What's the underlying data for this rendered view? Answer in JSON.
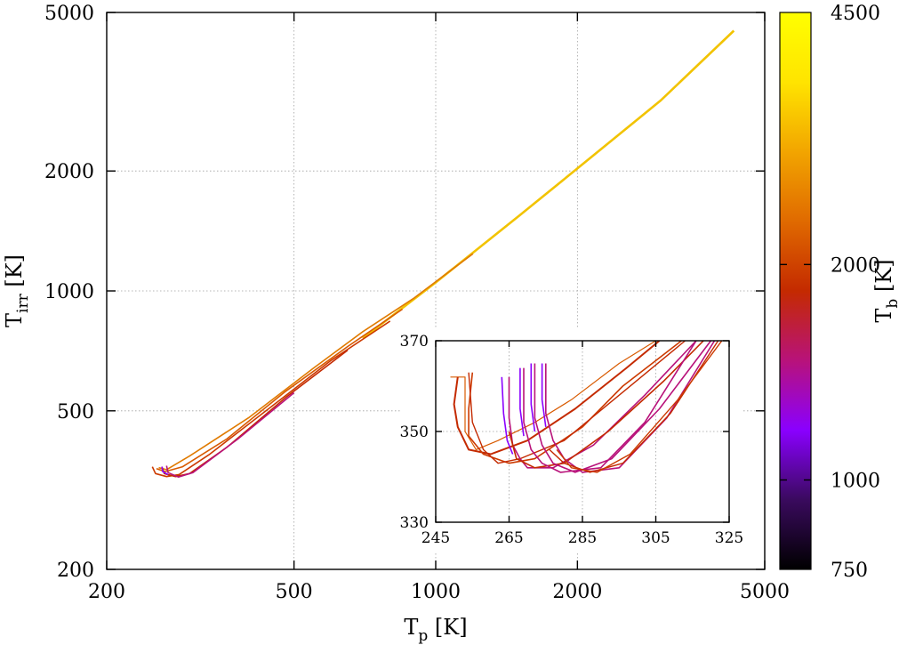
{
  "chart_data": [
    {
      "type": "line",
      "role": "main",
      "xlabel": {
        "main": "T",
        "sub": "p",
        "unit": " [K]"
      },
      "ylabel": {
        "main": "T",
        "sub": "irr",
        "unit": " [K]"
      },
      "xscale": "log",
      "yscale": "log",
      "xlim": [
        200,
        5000
      ],
      "ylim": [
        200,
        5000
      ],
      "x_ticks": [
        200,
        500,
        1000,
        2000,
        5000
      ],
      "x_tick_labels": [
        "200",
        "500",
        "1000",
        "2000",
        "5000"
      ],
      "y_ticks": [
        200,
        500,
        1000,
        2000,
        5000
      ],
      "y_tick_labels": [
        "200",
        "500",
        "1000",
        "2000",
        "5000"
      ],
      "grid": true,
      "colorbar": {
        "label": {
          "main": "T",
          "sub": "b",
          "unit": " [K]"
        },
        "range": [
          750,
          4500
        ],
        "ticks": [
          750,
          1000,
          2000,
          4500
        ],
        "tick_labels": [
          "750",
          "1000",
          "2000",
          "4500"
        ],
        "colormap": [
          "#000000",
          "#3a0a5e",
          "#8a00ff",
          "#b8127a",
          "#c42a00",
          "#e06a00",
          "#f2a500",
          "#ffe400",
          "#ffff00"
        ]
      },
      "series": [
        {
          "color": "#f2c300",
          "points": [
            [
              700,
              760
            ],
            [
              1000,
              1050
            ],
            [
              1500,
              1540
            ],
            [
              2000,
              2030
            ],
            [
              3000,
              3000
            ],
            [
              4300,
              4500
            ]
          ]
        },
        {
          "color": "#e07a00",
          "points": [
            [
              258,
              360
            ],
            [
              268,
              356
            ],
            [
              300,
              385
            ],
            [
              400,
              480
            ],
            [
              550,
              640
            ],
            [
              700,
              790
            ],
            [
              900,
              960
            ],
            [
              1200,
              1240
            ]
          ]
        },
        {
          "color": "#d85a00",
          "points": [
            [
              255,
              358
            ],
            [
              266,
              352
            ],
            [
              290,
              362
            ],
            [
              360,
              425
            ],
            [
              480,
              560
            ],
            [
              650,
              725
            ],
            [
              850,
              900
            ]
          ]
        },
        {
          "color": "#cc3a00",
          "points": [
            [
              250,
              362
            ],
            [
              254,
              348
            ],
            [
              268,
              342
            ],
            [
              285,
              346
            ],
            [
              330,
              388
            ],
            [
              450,
              515
            ],
            [
              600,
              670
            ],
            [
              800,
              840
            ]
          ]
        },
        {
          "color": "#c42a00",
          "points": [
            [
              262,
              362
            ],
            [
              265,
              348
            ],
            [
              280,
              342
            ],
            [
              300,
              348
            ],
            [
              360,
              405
            ],
            [
              480,
              540
            ],
            [
              650,
              710
            ]
          ]
        },
        {
          "color": "#b8127a",
          "points": [
            [
              268,
              364
            ],
            [
              270,
              350
            ],
            [
              284,
              341
            ],
            [
              305,
              350
            ],
            [
              380,
              425
            ],
            [
              500,
              555
            ]
          ]
        },
        {
          "color": "#8a00ff",
          "points": [
            [
              262,
              362
            ],
            [
              263,
              352
            ],
            [
              270,
              346
            ]
          ]
        }
      ]
    },
    {
      "type": "line",
      "role": "inset",
      "xlim": [
        245,
        325
      ],
      "ylim": [
        330,
        370
      ],
      "x_ticks": [
        245,
        265,
        285,
        305,
        325
      ],
      "x_tick_labels": [
        "245",
        "265",
        "285",
        "305",
        "325"
      ],
      "y_ticks": [
        330,
        350,
        370
      ],
      "y_tick_labels": [
        "330",
        "350",
        "370"
      ],
      "grid": true,
      "series": [
        {
          "color": "#d85a00",
          "width": 1.2,
          "points": [
            [
              249,
              362
            ],
            [
              253,
              362
            ],
            [
              253,
              350
            ],
            [
              256,
              346
            ],
            [
              262,
              348
            ],
            [
              272,
              352
            ],
            [
              282,
              357
            ],
            [
              295,
              365
            ],
            [
              305,
              370
            ]
          ]
        },
        {
          "color": "#c42a00",
          "width": 2.0,
          "points": [
            [
              251,
              362
            ],
            [
              250,
              356
            ],
            [
              251,
              351
            ],
            [
              254,
              346
            ],
            [
              260,
              345
            ],
            [
              270,
              348
            ],
            [
              283,
              355
            ],
            [
              297,
              364
            ],
            [
              306,
              370
            ]
          ]
        },
        {
          "color": "#cc3a00",
          "width": 1.6,
          "points": [
            [
              255,
              363
            ],
            [
              254,
              355
            ],
            [
              254,
              349
            ],
            [
              258,
              345
            ],
            [
              265,
              343
            ],
            [
              272,
              344
            ],
            [
              285,
              351
            ],
            [
              296,
              360
            ],
            [
              312,
              370
            ]
          ]
        },
        {
          "color": "#c42a00",
          "width": 1.4,
          "points": [
            [
              254,
              363
            ],
            [
              255,
              352
            ],
            [
              258,
              346
            ],
            [
              262,
              343
            ],
            [
              268,
              344
            ],
            [
              280,
              348
            ],
            [
              295,
              358
            ],
            [
              313,
              370
            ]
          ]
        },
        {
          "color": "#8a00ff",
          "width": 1.6,
          "points": [
            [
              263,
              362
            ],
            [
              263.5,
              354
            ],
            [
              264.5,
              348
            ],
            [
              266,
              345
            ]
          ]
        },
        {
          "color": "#b8127a",
          "width": 1.6,
          "points": [
            [
              265,
              362
            ],
            [
              265,
              353
            ],
            [
              266,
              347
            ],
            [
              268,
              344
            ],
            [
              270,
              342
            ],
            [
              277,
              342
            ],
            [
              288,
              347
            ],
            [
              302,
              358
            ],
            [
              316,
              370
            ]
          ]
        },
        {
          "color": "#c42a00",
          "width": 1.6,
          "points": [
            [
              265,
              350
            ],
            [
              267,
              344
            ],
            [
              272,
              342
            ],
            [
              280,
              343
            ],
            [
              292,
              350
            ],
            [
              307,
              361
            ],
            [
              318,
              370
            ]
          ]
        },
        {
          "color": "#8a00ff",
          "width": 1.6,
          "points": [
            [
              268,
              364
            ],
            [
              268,
              355
            ],
            [
              269,
              349
            ]
          ]
        },
        {
          "color": "#b8127a",
          "width": 1.6,
          "points": [
            [
              269,
              364
            ],
            [
              269,
              352
            ],
            [
              271,
              346
            ],
            [
              274,
              343
            ],
            [
              279,
              341
            ],
            [
              290,
              342
            ],
            [
              302,
              352
            ],
            [
              316,
              370
            ]
          ]
        },
        {
          "color": "#8a00ff",
          "width": 1.6,
          "points": [
            [
              271,
              365
            ],
            [
              271,
              356
            ],
            [
              272,
              350
            ]
          ]
        },
        {
          "color": "#b8127a",
          "width": 1.6,
          "points": [
            [
              272,
              365
            ],
            [
              272,
              353
            ],
            [
              274,
              347
            ],
            [
              277,
              343
            ],
            [
              283,
              341
            ],
            [
              293,
              344
            ],
            [
              306,
              355
            ],
            [
              320,
              370
            ]
          ]
        },
        {
          "color": "#8a00ff",
          "width": 1.6,
          "points": [
            [
              274,
              365
            ],
            [
              274,
              357
            ],
            [
              275,
              351
            ]
          ]
        },
        {
          "color": "#b8127a",
          "width": 1.6,
          "points": [
            [
              275,
              365
            ],
            [
              275,
              354
            ],
            [
              277,
              348
            ],
            [
              280,
              344
            ],
            [
              285,
              341
            ],
            [
              295,
              342
            ],
            [
              308,
              353
            ],
            [
              321,
              370
            ]
          ]
        },
        {
          "color": "#c42a00",
          "width": 1.4,
          "points": [
            [
              276,
              346
            ],
            [
              280,
              343
            ],
            [
              287,
              341
            ],
            [
              296,
              343
            ],
            [
              309,
              354
            ],
            [
              322,
              370
            ]
          ]
        },
        {
          "color": "#cc3a00",
          "width": 1.4,
          "points": [
            [
              278,
              346
            ],
            [
              282,
              342
            ],
            [
              289,
              341
            ],
            [
              298,
              345
            ],
            [
              311,
              357
            ],
            [
              323,
              370
            ]
          ]
        }
      ]
    }
  ]
}
